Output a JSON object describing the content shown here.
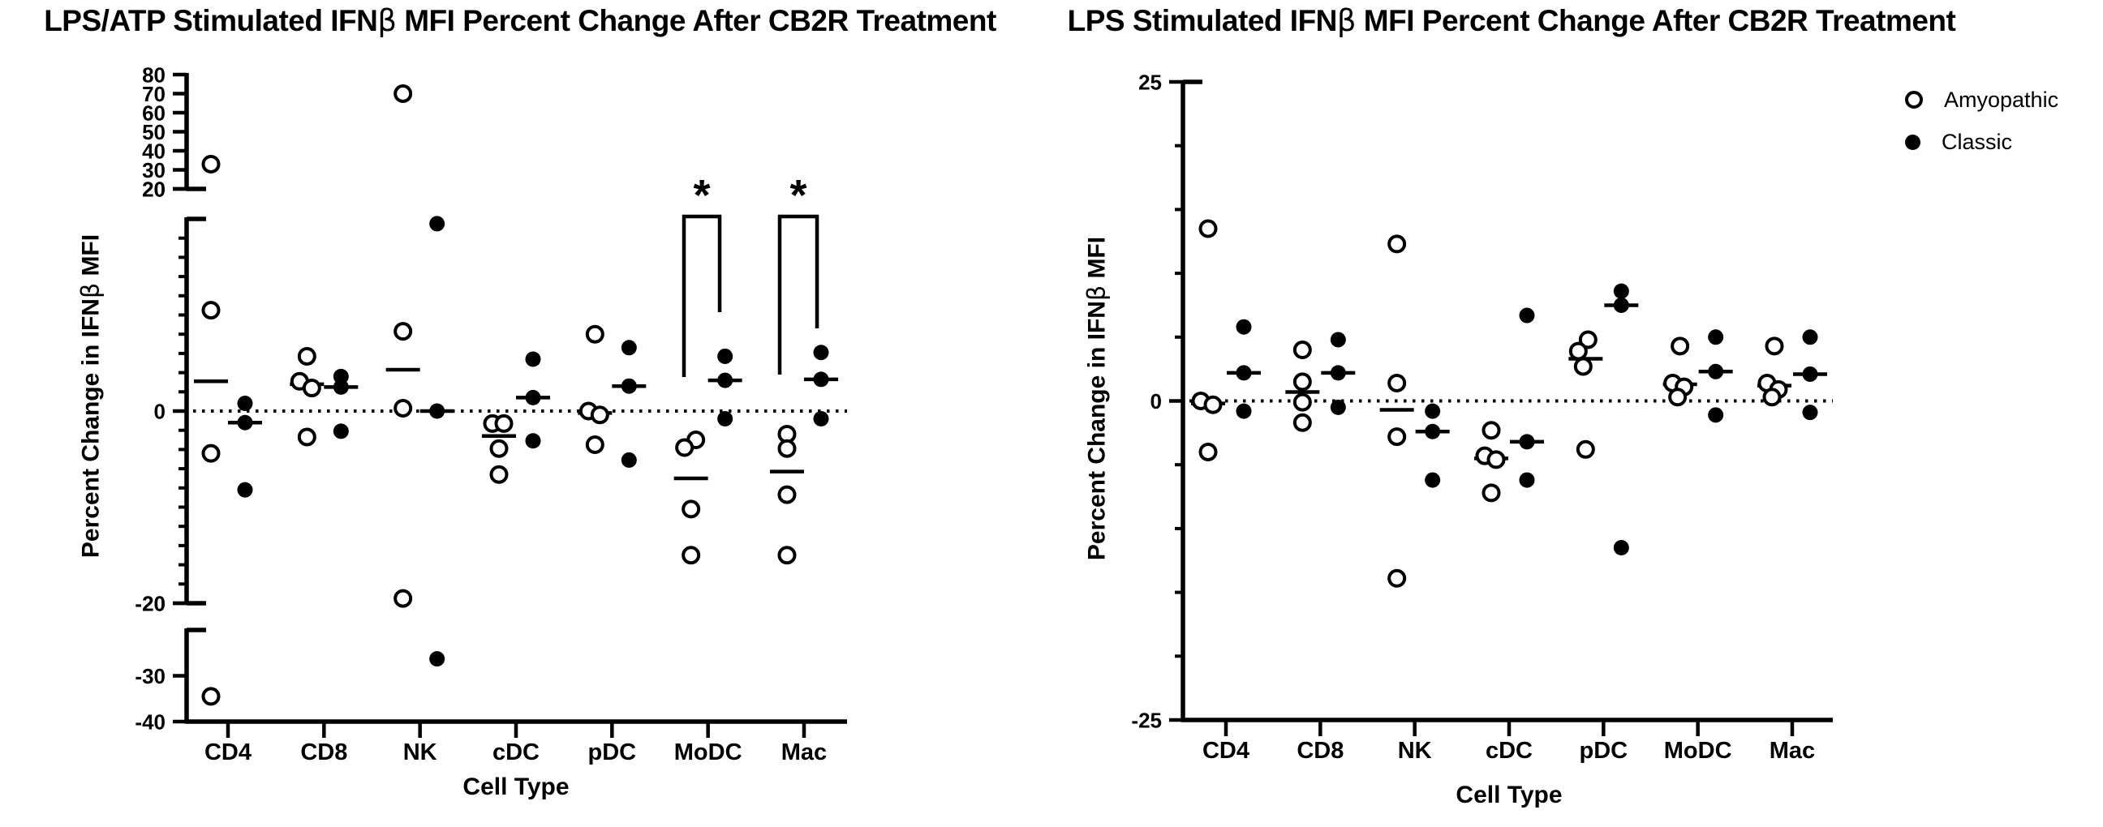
{
  "legend": {
    "items": [
      {
        "label": "Amyopathic",
        "marker": "open"
      },
      {
        "label": "Classic",
        "marker": "filled"
      }
    ]
  },
  "chart_data": [
    {
      "type": "scatter",
      "title": {
        "pre": "LPS/ATP Stimulated IFN",
        "beta": "β",
        "post": " MFI Percent Change After CB2R Treatment"
      },
      "xlabel": "Cell Type",
      "ylabel": {
        "pre": "Percent Change in IFN",
        "beta": "β",
        "post": " MFI"
      },
      "categories": [
        "CD4",
        "CD8",
        "NK",
        "cDC",
        "pDC",
        "MoDC",
        "Mac"
      ],
      "y_axis": {
        "broken": true,
        "zero_line_dotted": true,
        "segments": [
          {
            "range": [
              20,
              80
            ],
            "tick_labels": [
              80,
              70,
              60,
              50,
              40,
              30,
              20
            ]
          },
          {
            "range": [
              -20,
              20
            ],
            "tick_labels": [
              20,
              0,
              -20
            ],
            "minor_tick_step": 2
          },
          {
            "range": [
              -40,
              -20
            ],
            "tick_labels": [
              -20,
              -30,
              -40
            ]
          }
        ]
      },
      "series": [
        {
          "name": "Amyopathic",
          "marker": "open",
          "points": {
            "CD4": [
              33,
              10.5,
              -4.4,
              -34.5
            ],
            "CD8": [
              5.7,
              3.1,
              2.4,
              -2.7
            ],
            "NK": [
              70,
              8.3,
              0.3,
              -19.5
            ],
            "cDC": [
              -1.3,
              -1.3,
              -3.9,
              -6.6
            ],
            "pDC": [
              8,
              0,
              -0.4,
              -3.5
            ],
            "MoDC": [
              -3,
              -3.8,
              -10.2,
              -15
            ],
            "Mac": [
              -2.4,
              -3.9,
              -8.7,
              -15
            ]
          },
          "medians": {
            "CD4": 3.1,
            "CD8": 2.8,
            "NK": 4.3,
            "cDC": -2.6,
            "pDC": -0.2,
            "MoDC": -7,
            "Mac": -6.3
          }
        },
        {
          "name": "Classic",
          "marker": "filled",
          "points": {
            "CD4": [
              0.8,
              -1.2,
              -8.2
            ],
            "CD8": [
              3.6,
              2.5,
              -2.1
            ],
            "NK": [
              19.5,
              0,
              -26.3
            ],
            "cDC": [
              5.4,
              1.4,
              -3.1
            ],
            "pDC": [
              6.6,
              2.6,
              -5.1
            ],
            "MoDC": [
              5.7,
              3.2,
              -0.8
            ],
            "Mac": [
              6.1,
              3.3,
              -0.8
            ]
          },
          "medians": {
            "CD4": -1.2,
            "CD8": 2.5,
            "NK": 0,
            "cDC": 1.4,
            "pDC": 2.6,
            "MoDC": 3.2,
            "Mac": 3.3
          }
        }
      ],
      "significance": [
        {
          "category": "MoDC",
          "label": "*"
        },
        {
          "category": "Mac",
          "label": "*"
        }
      ]
    },
    {
      "type": "scatter",
      "title": {
        "pre": "LPS Stimulated IFN",
        "beta": "β",
        "post": " MFI Percent Change After CB2R Treatment"
      },
      "xlabel": "Cell Type",
      "ylabel": {
        "pre": "Percent Change in IFN",
        "beta": "β",
        "post": " MFI"
      },
      "categories": [
        "CD4",
        "CD8",
        "NK",
        "cDC",
        "pDC",
        "MoDC",
        "Mac"
      ],
      "y_axis": {
        "broken": false,
        "zero_line_dotted": true,
        "segments": [
          {
            "range": [
              -25,
              25
            ],
            "tick_labels": [
              25,
              0,
              -25
            ],
            "minor_tick_step": 5
          }
        ]
      },
      "series": [
        {
          "name": "Amyopathic",
          "marker": "open",
          "points": {
            "CD4": [
              13.5,
              0,
              -0.3,
              -4
            ],
            "CD8": [
              4,
              1.5,
              -0.1,
              -1.7
            ],
            "NK": [
              12.3,
              1.4,
              -2.8,
              -13.9
            ],
            "cDC": [
              -2.3,
              -4.3,
              -4.6,
              -7.2
            ],
            "pDC": [
              4.8,
              3.9,
              2.7,
              -3.8
            ],
            "MoDC": [
              4.3,
              1.4,
              1.1,
              0.3
            ],
            "Mac": [
              4.3,
              1.4,
              0.9,
              0.3
            ]
          },
          "medians": {
            "CD4": -0.2,
            "CD8": 0.7,
            "NK": -0.7,
            "cDC": -4.5,
            "pDC": 3.3,
            "MoDC": 1.3,
            "Mac": 1.2
          }
        },
        {
          "name": "Classic",
          "marker": "filled",
          "points": {
            "CD4": [
              5.8,
              2.2,
              -0.8
            ],
            "CD8": [
              4.8,
              2.2,
              -0.5
            ],
            "NK": [
              -0.8,
              -2.4,
              -6.2
            ],
            "cDC": [
              6.7,
              -3.2,
              -6.2
            ],
            "pDC": [
              8.6,
              7.5,
              -11.5
            ],
            "MoDC": [
              5,
              2.3,
              -1.1
            ],
            "Mac": [
              5,
              2.1,
              -0.9
            ]
          },
          "medians": {
            "CD4": 2.2,
            "CD8": 2.2,
            "NK": -2.4,
            "cDC": -3.2,
            "pDC": 7.5,
            "MoDC": 2.3,
            "Mac": 2.1
          }
        }
      ],
      "significance": []
    }
  ]
}
